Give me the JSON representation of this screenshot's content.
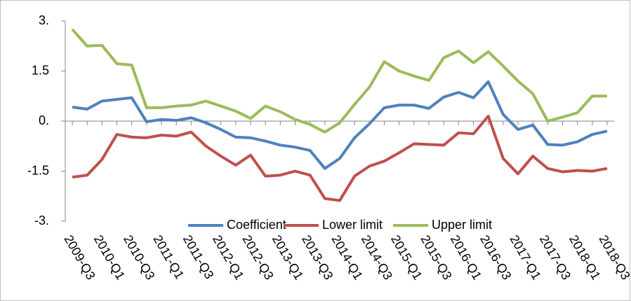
{
  "chart_data": {
    "type": "line",
    "categories": [
      "2009-Q3",
      null,
      "2010-Q1",
      null,
      "2010-Q3",
      null,
      "2011-Q1",
      null,
      "2011-Q3",
      null,
      "2012-Q1",
      null,
      "2012-Q3",
      null,
      "2013-Q1",
      null,
      "2013-Q3",
      null,
      "2014-Q1",
      null,
      "2014-Q3",
      null,
      "2015-Q1",
      null,
      "2015-Q3",
      null,
      "2016-Q1",
      null,
      "2016-Q3",
      null,
      "2017-Q1",
      null,
      "2017-Q3",
      null,
      "2018-Q1",
      null,
      "2018-Q3"
    ],
    "series": [
      {
        "name": "Coefficient",
        "color": "#4f81bd",
        "values": [
          0.42,
          0.36,
          0.6,
          0.65,
          0.7,
          -0.02,
          0.05,
          0.02,
          0.1,
          -0.05,
          -0.25,
          -0.48,
          -0.5,
          -0.6,
          -0.72,
          -0.78,
          -0.88,
          -1.42,
          -1.12,
          -0.5,
          -0.08,
          0.4,
          0.48,
          0.48,
          0.38,
          0.72,
          0.86,
          0.7,
          1.18,
          0.2,
          -0.25,
          -0.12,
          -0.7,
          -0.72,
          -0.62,
          -0.4,
          -0.3
        ]
      },
      {
        "name": "Lower limit",
        "color": "#c0504d",
        "values": [
          -1.68,
          -1.62,
          -1.15,
          -0.4,
          -0.48,
          -0.5,
          -0.42,
          -0.45,
          -0.33,
          -0.75,
          -1.05,
          -1.32,
          -1.02,
          -1.65,
          -1.62,
          -1.5,
          -1.62,
          -2.32,
          -2.38,
          -1.65,
          -1.35,
          -1.2,
          -0.95,
          -0.68,
          -0.7,
          -0.72,
          -0.35,
          -0.38,
          0.15,
          -1.12,
          -1.58,
          -1.05,
          -1.42,
          -1.52,
          -1.48,
          -1.5,
          -1.42
        ]
      },
      {
        "name": "Upper limit",
        "color": "#9bbb59",
        "values": [
          2.75,
          2.25,
          2.27,
          1.72,
          1.68,
          0.4,
          0.4,
          0.45,
          0.48,
          0.6,
          0.45,
          0.3,
          0.08,
          0.45,
          0.28,
          0.05,
          -0.1,
          -0.33,
          -0.05,
          0.5,
          1.02,
          1.78,
          1.5,
          1.35,
          1.22,
          1.9,
          2.1,
          1.75,
          2.08,
          1.65,
          1.2,
          0.82,
          0.0,
          0.12,
          0.25,
          0.75,
          0.75
        ]
      }
    ],
    "ylim": [
      -3,
      3
    ],
    "yticks": [
      {
        "value": -3,
        "label": "-3."
      },
      -1.5,
      {
        "value": 0,
        "label": "0."
      },
      1.5,
      {
        "value": 3,
        "label": "3."
      }
    ],
    "grid": false,
    "legend": "bottom"
  }
}
